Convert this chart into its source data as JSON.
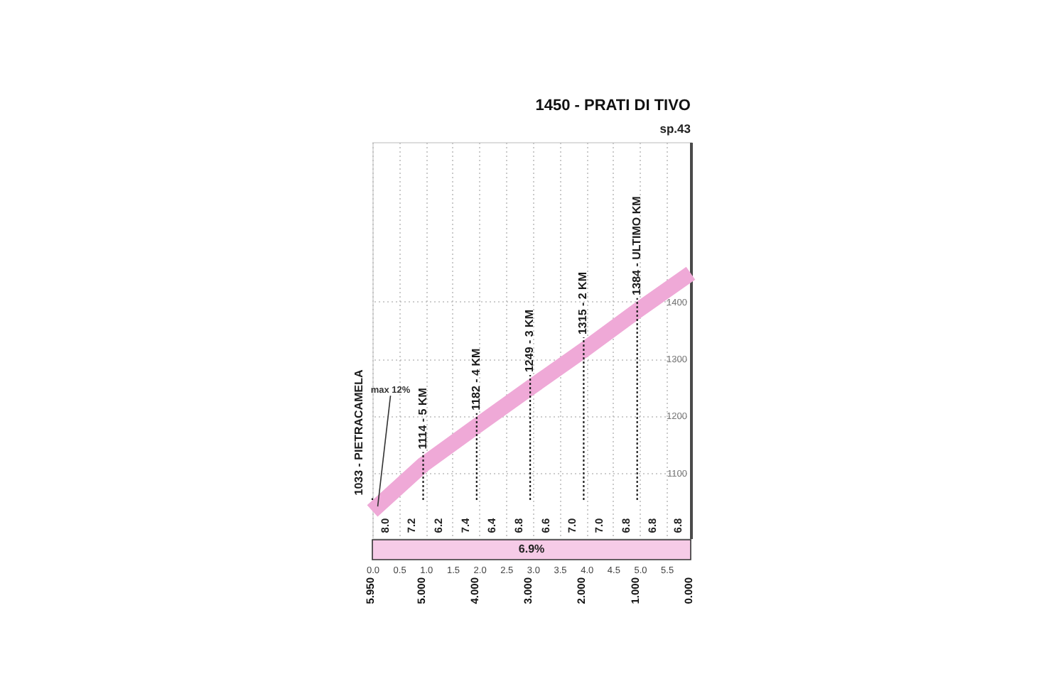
{
  "chart_data": {
    "type": "line",
    "title": "1450 - PRATI DI TIVO",
    "subtitle": "sp.43",
    "x": [
      0,
      0.95,
      1.95,
      2.95,
      3.95,
      4.95,
      5.95
    ],
    "values": [
      1033,
      1114,
      1182,
      1249,
      1315,
      1384,
      1450
    ],
    "value_labels": [
      "1033 - PIETRACAMELA",
      "1114 - 5 KM",
      "1182 - 4 KM",
      "1249 - 3 KM",
      "1315 - 2 KM",
      "1384 - ULTIMO KM",
      null
    ],
    "color": "#efa9d7",
    "xlim": [
      0,
      5.95
    ],
    "xticks": [
      {
        "value": 0,
        "label": "0.0"
      },
      0.5,
      {
        "value": 1,
        "label": "1.0"
      },
      1.5,
      {
        "value": 2,
        "label": "2.0"
      },
      2.5,
      {
        "value": 3,
        "label": "3.0"
      },
      3.5,
      {
        "value": 4,
        "label": "4.0"
      },
      4.5,
      {
        "value": 5,
        "label": "5.0"
      },
      5.5
    ],
    "x2lim": [
      5.95,
      0
    ],
    "x2ticks": [
      {
        "value": 5.95,
        "label": "5.950"
      },
      {
        "value": 5,
        "label": "5.000"
      },
      {
        "value": 4,
        "label": "4.000"
      },
      {
        "value": 3,
        "label": "3.000"
      },
      {
        "value": 2,
        "label": "2.000"
      },
      {
        "value": 1,
        "label": "1.000"
      },
      {
        "value": 0,
        "label": "0.000"
      }
    ],
    "ylim": [
      985,
      1680
    ],
    "yticks": [
      1100,
      1200,
      1300,
      1400
    ],
    "grid": true,
    "annotations": [
      {
        "text": "max 12%",
        "x": 0.1,
        "y": 1041
      },
      "6.9%",
      "8.0",
      "7.2",
      "6.2",
      "7.4",
      "6.4",
      "6.8",
      "6.6",
      "7.0",
      "7.0",
      "6.8",
      "6.8",
      "6.8"
    ]
  }
}
